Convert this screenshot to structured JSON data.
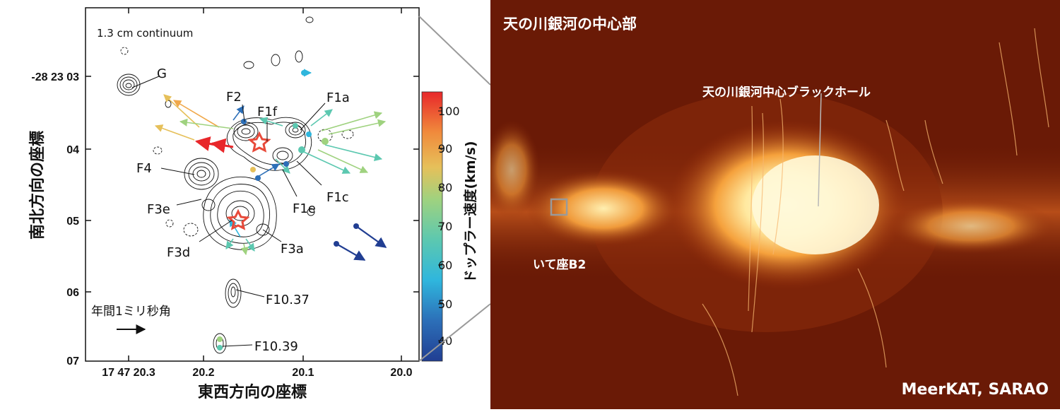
{
  "left_map": {
    "continuum_label": "1.3 cm continuum",
    "sources": [
      "G",
      "F2",
      "F1f",
      "F1a",
      "F4",
      "F3e",
      "F3d",
      "F3a",
      "F1c",
      "F1e",
      "F10.37",
      "F10.39"
    ],
    "y_ticks": [
      "-28 23 03",
      "04",
      "05",
      "06",
      "07"
    ],
    "x_ticks": [
      "17 47 20.3",
      "20.2",
      "20.1",
      "20.0"
    ],
    "x_axis_title": "東西方向の座標",
    "y_axis_title": "南北方向の座標",
    "scale_label": "年間1ミリ秒角",
    "colorbar": {
      "title": "ドップラー速度(km/s)",
      "ticks": [
        "100",
        "90",
        "80",
        "70",
        "60",
        "50",
        "40"
      ],
      "colors": [
        "#e8272a",
        "#f08a3c",
        "#e6c05a",
        "#9fd27f",
        "#5cc8b0",
        "#2fb6dd",
        "#2c6fb8",
        "#213e92"
      ]
    },
    "colors": {
      "contour": "#111111",
      "star": "#e84a3a"
    }
  },
  "right_image": {
    "title": "天の川銀河の中心部",
    "black_hole_label": "天の川銀河中心ブラックホール",
    "sgr_b2_label": "いて座B2",
    "credit": "MeerKAT, SARAO",
    "colors": {
      "background": "#6a1a06",
      "glow": "#fff6c8"
    }
  }
}
